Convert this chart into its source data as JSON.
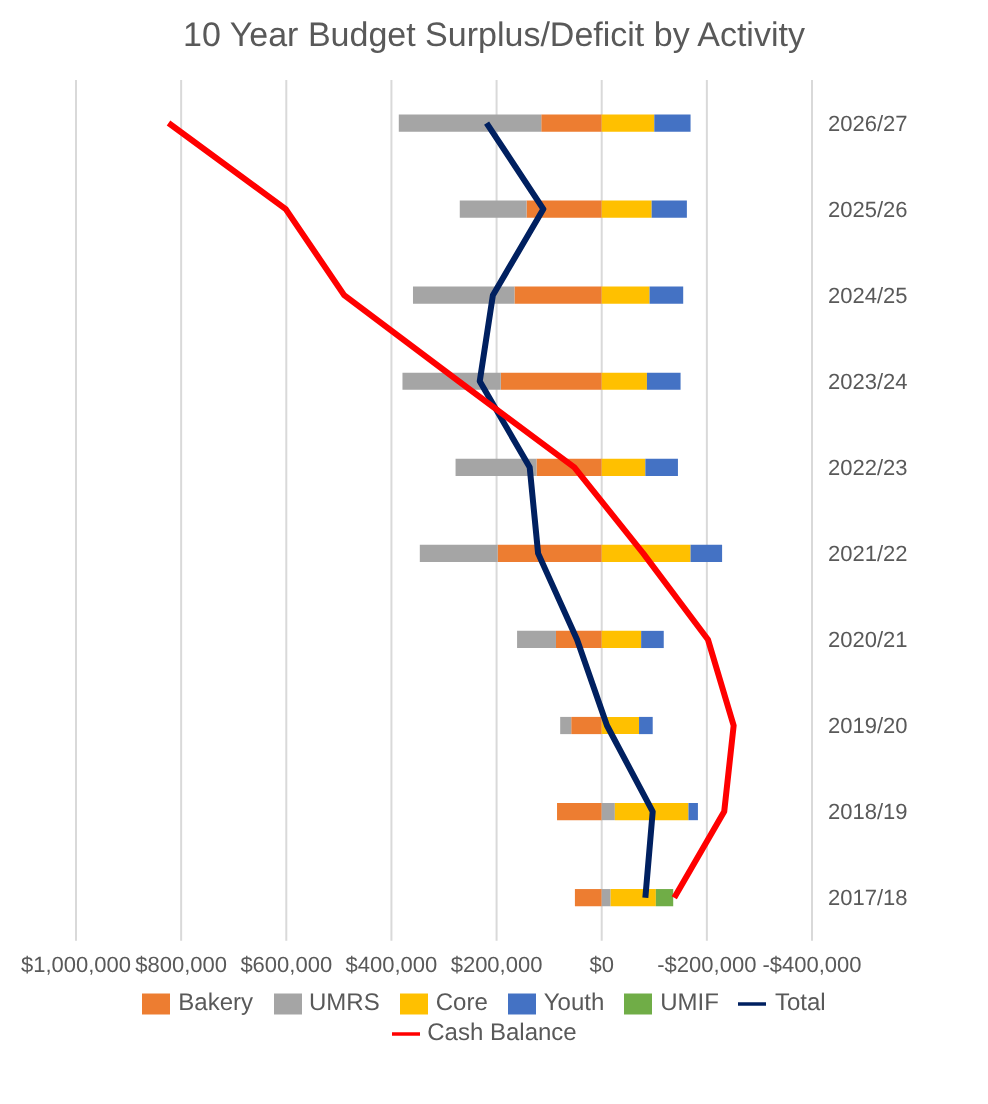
{
  "chart_data": {
    "type": "bar",
    "title": "10 Year Budget Surplus/Deficit by Activity",
    "orientation": "horizontal",
    "stacked": true,
    "categories": [
      "2026/27",
      "2025/26",
      "2024/25",
      "2023/24",
      "2022/23",
      "2021/22",
      "2020/21",
      "2019/20",
      "2018/19",
      "2017/18"
    ],
    "series": [
      {
        "name": "Bakery",
        "color": "#ed7d31",
        "values": [
          115000,
          143000,
          166000,
          192000,
          124000,
          198000,
          87000,
          58000,
          85000,
          51000
        ]
      },
      {
        "name": "UMRS",
        "color": "#a5a5a5",
        "values": [
          271000,
          127000,
          193000,
          187000,
          154000,
          148000,
          74000,
          21000,
          -25000,
          -17000
        ]
      },
      {
        "name": "Core",
        "color": "#ffc000",
        "values": [
          -100000,
          -95000,
          -91000,
          -86000,
          -83000,
          -169000,
          -75000,
          -71000,
          -140000,
          -86000
        ]
      },
      {
        "name": "Youth",
        "color": "#4472c4",
        "values": [
          -69000,
          -67000,
          -64000,
          -64000,
          -62000,
          -60000,
          -43000,
          -26000,
          -18000,
          null
        ]
      },
      {
        "name": "UMIF",
        "color": "#70ad47",
        "values": [
          null,
          null,
          null,
          null,
          null,
          null,
          null,
          null,
          null,
          -33000
        ]
      },
      {
        "name": "Total",
        "type": "line",
        "color": "#002060",
        "values": [
          219000,
          111000,
          207000,
          232000,
          137000,
          121000,
          47000,
          -10000,
          -97000,
          -83000
        ]
      },
      {
        "name": "Cash Balance",
        "type": "line",
        "color": "#ff0000",
        "values": [
          824000,
          601000,
          490000,
          272000,
          52000,
          -79000,
          -202000,
          -251000,
          -233000,
          -138000
        ]
      }
    ],
    "xlim": [
      1000000,
      -400000
    ],
    "xticks": [
      {
        "value": 1000000,
        "label": "$1,000,000"
      },
      {
        "value": 800000,
        "label": "$800,000"
      },
      {
        "value": 600000,
        "label": "$600,000"
      },
      {
        "value": 400000,
        "label": "$400,000"
      },
      {
        "value": 200000,
        "label": "$200,000"
      },
      {
        "value": 0,
        "label": "$0"
      },
      {
        "value": -200000,
        "label": "-$200,000"
      },
      {
        "value": -400000,
        "label": "-$400,000"
      }
    ],
    "grid": "x",
    "legend": "bottom",
    "marker": "none",
    "line_style": "solid"
  }
}
